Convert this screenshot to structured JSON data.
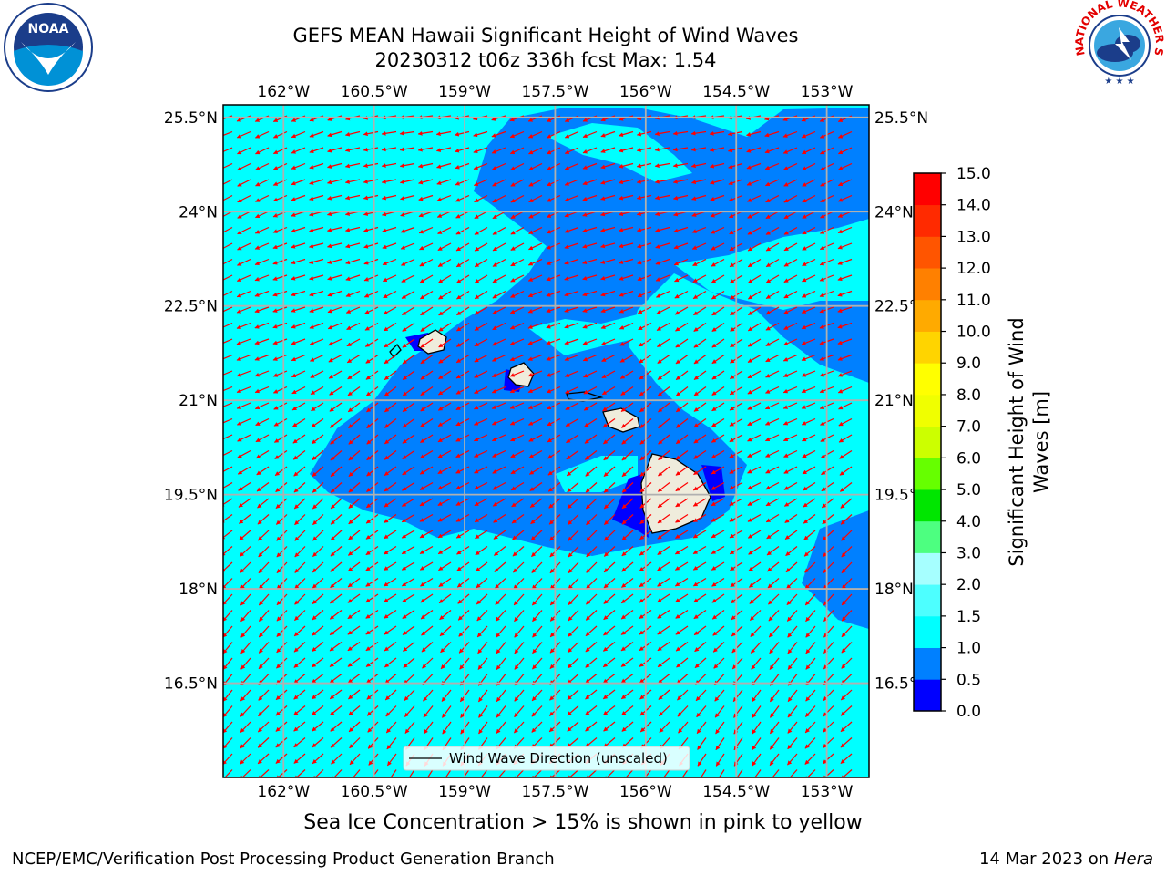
{
  "title": {
    "line1": "GEFS MEAN Hawaii Significant Height of Wind Waves",
    "line2": "20230312 t06z 336h fcst   Max: 1.54"
  },
  "logos": {
    "left": {
      "name": "NOAA",
      "ring_text": "NATIONAL OCEANIC AND ATMOSPHERIC ADMINISTRATION · U.S. DEPARTMENT OF COMMERCE"
    },
    "right": {
      "name": "NATIONAL WEATHER SERVICE"
    }
  },
  "map": {
    "lon_ticks": [
      "162°W",
      "160.5°W",
      "159°W",
      "157.5°W",
      "156°W",
      "154.5°W",
      "153°W"
    ],
    "lat_ticks": [
      "25.5°N",
      "24°N",
      "22.5°N",
      "21°N",
      "19.5°N",
      "18°N",
      "16.5°N"
    ],
    "lon_values": [
      -162,
      -160.5,
      -159,
      -157.5,
      -156,
      -154.5,
      -153
    ],
    "lat_values": [
      25.5,
      24,
      22.5,
      21,
      19.5,
      18,
      16.5
    ],
    "lon_range": [
      -163.0,
      -152.3
    ],
    "lat_range": [
      15.0,
      25.7
    ],
    "vector_color": "#ff0000",
    "ocean_color_low": "#00ffff",
    "ocean_color_mid": "#0080ff",
    "ocean_color_deep": "#0000ff",
    "land_color": "#efecdc",
    "grid_color": "#b0b0b0",
    "legend_label": "Wind Wave Direction (unscaled)"
  },
  "colorbar": {
    "label_line1": "Significant Height of Wind",
    "label_line2": "Waves [m]",
    "ticks": [
      "0.0",
      "0.5",
      "1.0",
      "1.5",
      "2.0",
      "3.0",
      "4.0",
      "5.0",
      "6.0",
      "7.0",
      "8.0",
      "9.0",
      "10.0",
      "11.0",
      "12.0",
      "13.0",
      "14.0",
      "15.0"
    ],
    "colors": [
      "#0000ff",
      "#0080ff",
      "#00ffff",
      "#4dffff",
      "#a6ffff",
      "#4dff80",
      "#00e600",
      "#66ff00",
      "#ccff00",
      "#f0ff00",
      "#ffff00",
      "#ffd400",
      "#ffaa00",
      "#ff8000",
      "#ff5500",
      "#ff2a00",
      "#ff0000"
    ]
  },
  "note": "Sea Ice Concentration > 15% is shown in pink to yellow",
  "footer": {
    "left": "NCEP/EMC/Verification Post Processing Product Generation Branch",
    "date": "14 Mar 2023 on",
    "host": "Hera"
  }
}
